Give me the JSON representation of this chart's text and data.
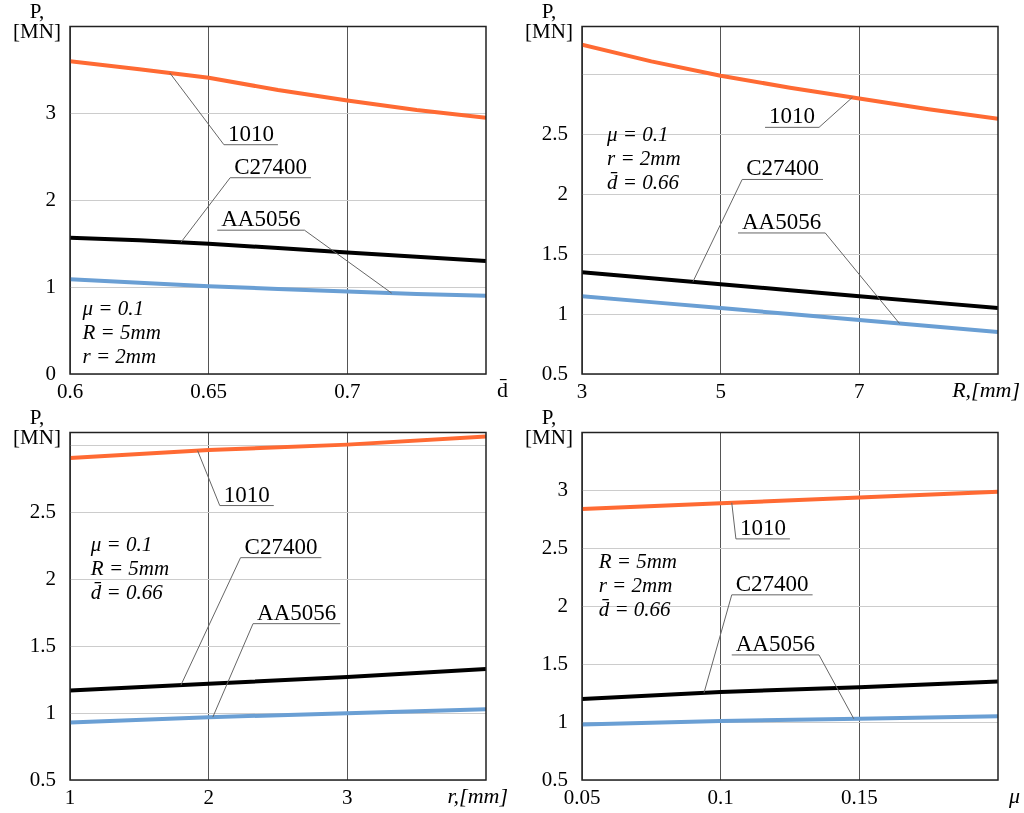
{
  "chart_data": [
    {
      "type": "line",
      "ylabel": "P, [MN]",
      "xlabel": "d̄",
      "x": [
        0.6,
        0.625,
        0.65,
        0.675,
        0.7,
        0.725,
        0.75
      ],
      "xlim": [
        0.6,
        0.75
      ],
      "xticks": [
        0.6,
        0.65,
        0.7
      ],
      "ylim": [
        0,
        4
      ],
      "yticks": [
        0,
        1,
        2,
        3
      ],
      "grid": true,
      "marker": "none",
      "annotations": [
        "μ = 0.1",
        "R = 5mm",
        "r = 2mm"
      ],
      "series": [
        {
          "name": "1010",
          "color": "#ff6a33",
          "values": [
            3.6,
            3.51,
            3.41,
            3.27,
            3.15,
            3.04,
            2.95
          ]
        },
        {
          "name": "C27400",
          "color": "#000000",
          "values": [
            1.57,
            1.54,
            1.5,
            1.45,
            1.4,
            1.35,
            1.3
          ]
        },
        {
          "name": "AA5056",
          "color": "#6a9fd4",
          "values": [
            1.09,
            1.05,
            1.01,
            0.98,
            0.95,
            0.92,
            0.9
          ]
        }
      ]
    },
    {
      "type": "line",
      "ylabel": "P, [MN]",
      "xlabel": "R,[mm]",
      "x": [
        3,
        4,
        5,
        6,
        7,
        8,
        9
      ],
      "xlim": [
        3,
        9
      ],
      "xticks": [
        3,
        5,
        7
      ],
      "ylim": [
        0.5,
        3.4
      ],
      "yticks": [
        0.5,
        1,
        1.5,
        2,
        2.5,
        {
          "value": 3,
          "label": null
        }
      ],
      "grid": true,
      "marker": "none",
      "annotations": [
        "μ = 0.1",
        "r = 2mm",
        "d̄ = 0.66"
      ],
      "series": [
        {
          "name": "1010",
          "color": "#ff6a33",
          "values": [
            3.25,
            3.11,
            2.99,
            2.89,
            2.8,
            2.71,
            2.63
          ]
        },
        {
          "name": "C27400",
          "color": "#000000",
          "values": [
            1.35,
            1.3,
            1.25,
            1.2,
            1.15,
            1.1,
            1.05
          ]
        },
        {
          "name": "AA5056",
          "color": "#6a9fd4",
          "values": [
            1.15,
            1.1,
            1.05,
            1.0,
            0.95,
            0.9,
            0.85
          ]
        }
      ]
    },
    {
      "type": "line",
      "ylabel": "P, [MN]",
      "xlabel": "r,[mm]",
      "x": [
        1,
        2,
        3,
        4
      ],
      "xlim": [
        1,
        4
      ],
      "xticks": [
        1,
        2,
        3
      ],
      "ylim": [
        0.5,
        3.1
      ],
      "yticks": [
        0.5,
        1,
        1.5,
        2,
        2.5,
        {
          "value": 3,
          "label": null
        }
      ],
      "grid": true,
      "marker": "none",
      "annotations": [
        "μ = 0.1",
        "R = 5mm",
        "d̄ = 0.66"
      ],
      "series": [
        {
          "name": "1010",
          "color": "#ff6a33",
          "values": [
            2.91,
            2.97,
            3.01,
            3.07
          ]
        },
        {
          "name": "C27400",
          "color": "#000000",
          "values": [
            1.17,
            1.22,
            1.27,
            1.33
          ]
        },
        {
          "name": "AA5056",
          "color": "#6a9fd4",
          "values": [
            0.93,
            0.97,
            1.0,
            1.03
          ]
        }
      ]
    },
    {
      "type": "line",
      "ylabel": "P, [MN]",
      "xlabel": "μ",
      "x": [
        0.05,
        0.1,
        0.15,
        0.2
      ],
      "xlim": [
        0.05,
        0.2
      ],
      "xticks": [
        0.05,
        0.1,
        0.15
      ],
      "ylim": [
        0.5,
        3.5
      ],
      "yticks": [
        0.5,
        1,
        1.5,
        2,
        2.5,
        3
      ],
      "grid": true,
      "marker": "none",
      "annotations": [
        "R = 5mm",
        "r = 2mm",
        "d̄ = 0.66"
      ],
      "series": [
        {
          "name": "1010",
          "color": "#ff6a33",
          "values": [
            2.84,
            2.89,
            2.94,
            2.99
          ]
        },
        {
          "name": "C27400",
          "color": "#000000",
          "values": [
            1.2,
            1.26,
            1.3,
            1.35
          ]
        },
        {
          "name": "AA5056",
          "color": "#6a9fd4",
          "values": [
            0.98,
            1.01,
            1.03,
            1.05
          ]
        }
      ]
    }
  ]
}
